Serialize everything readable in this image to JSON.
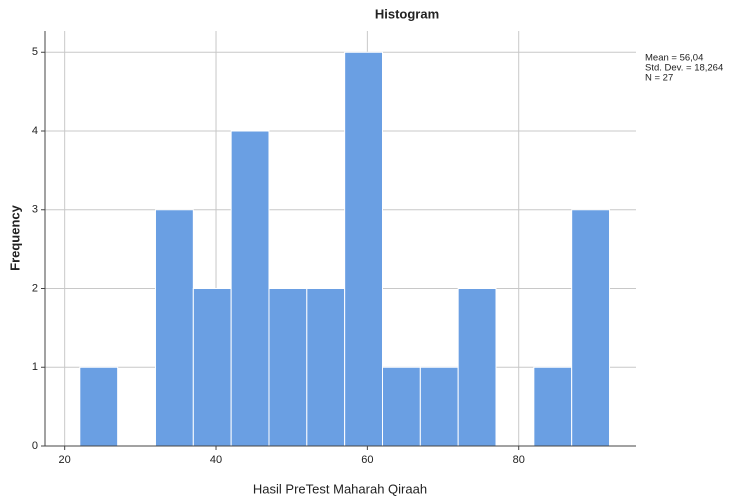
{
  "chart_data": {
    "type": "histogram",
    "title": "Histogram",
    "x_label": "Hasil PreTest Maharah Qiraah",
    "y_label": "Frequency",
    "bins": [
      22,
      27,
      32,
      37,
      42,
      47,
      52,
      57,
      62,
      67,
      72,
      77,
      82,
      87,
      92
    ],
    "values": [
      1,
      0,
      3,
      2,
      4,
      2,
      2,
      5,
      1,
      1,
      2,
      0,
      1,
      3
    ],
    "color": "#6a9fe3",
    "xlim": [
      17.4,
      95.5
    ],
    "xticks": [
      20,
      40,
      60,
      80
    ],
    "ylim": [
      0,
      5.27
    ],
    "yticks": [
      0,
      1,
      2,
      3,
      4,
      5
    ],
    "grid": true,
    "annotations": [
      "Mean = 56,04",
      "Std. Dev. = 18,264",
      "N = 27"
    ]
  }
}
